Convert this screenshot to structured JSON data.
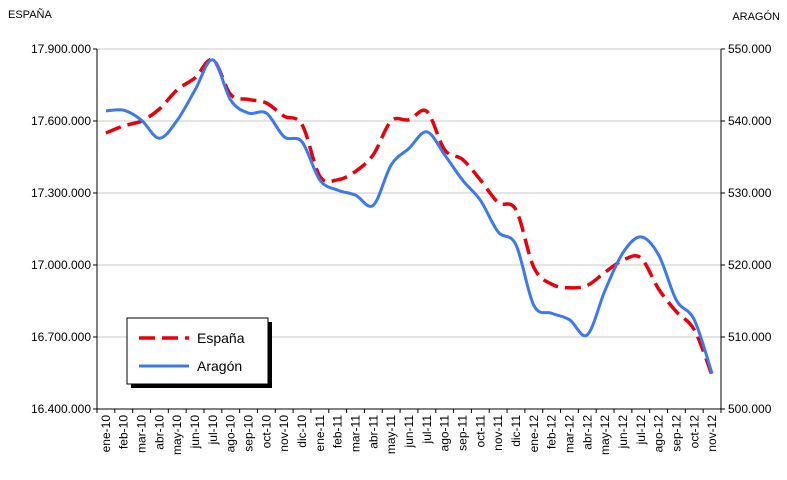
{
  "chart_data": {
    "type": "line",
    "ylabel": "ESPAÑA",
    "y2label": "ARAGÓN",
    "categories": [
      "ene-10",
      "feb-10",
      "mar-10",
      "abr-10",
      "may-10",
      "jun-10",
      "jul-10",
      "ago-10",
      "sep-10",
      "oct-10",
      "nov-10",
      "dic-10",
      "ene-11",
      "feb-11",
      "mar-11",
      "abr-11",
      "may-11",
      "jun-11",
      "jul-11",
      "ago-11",
      "sep-11",
      "oct-11",
      "nov-11",
      "dic-11",
      "ene-12",
      "feb-12",
      "mar-12",
      "abr-12",
      "may-12",
      "jun-12",
      "jul-12",
      "ago-12",
      "sep-12",
      "oct-12",
      "nov-12"
    ],
    "series": [
      {
        "name": "España",
        "color": "#e8000b",
        "dashed": true,
        "axis": "y",
        "values": [
          17550000,
          17580000,
          17600000,
          17650000,
          17730000,
          17780000,
          17855000,
          17710000,
          17690000,
          17675000,
          17620000,
          17585000,
          17370000,
          17355000,
          17390000,
          17460000,
          17600000,
          17605000,
          17640000,
          17480000,
          17440000,
          17355000,
          17260000,
          17230000,
          16990000,
          16920000,
          16905000,
          16915000,
          16970000,
          17020000,
          17030000,
          16900000,
          16805000,
          16730000,
          16540000
        ]
      },
      {
        "name": "Aragón",
        "color": "#3c78f0",
        "dashed": false,
        "axis": "y2",
        "values": [
          541400,
          541500,
          540100,
          537600,
          540100,
          544300,
          548500,
          542900,
          541100,
          541100,
          537800,
          537100,
          531800,
          530400,
          529700,
          528300,
          533900,
          536200,
          538500,
          535300,
          531800,
          529000,
          524600,
          522800,
          514400,
          513300,
          512400,
          510300,
          516500,
          521700,
          523900,
          521400,
          515100,
          512400,
          504900
        ]
      }
    ],
    "ylim": [
      16400000,
      17900000
    ],
    "yticks": [
      {
        "value": 16400000,
        "label": "16.400.000"
      },
      {
        "value": 16700000,
        "label": "16.700.000"
      },
      {
        "value": 17000000,
        "label": "17.000.000"
      },
      {
        "value": 17300000,
        "label": "17.300.000"
      },
      {
        "value": 17600000,
        "label": "17.600.000"
      },
      {
        "value": 17900000,
        "label": "17.900.000"
      }
    ],
    "y2lim": [
      500000,
      550000
    ],
    "y2ticks": [
      {
        "value": 500000,
        "label": "500.000"
      },
      {
        "value": 510000,
        "label": "510.000"
      },
      {
        "value": 520000,
        "label": "520.000"
      },
      {
        "value": 530000,
        "label": "530.000"
      },
      {
        "value": 540000,
        "label": "540.000"
      },
      {
        "value": 550000,
        "label": "550.000"
      }
    ],
    "grid": true,
    "legend": "lower left"
  }
}
